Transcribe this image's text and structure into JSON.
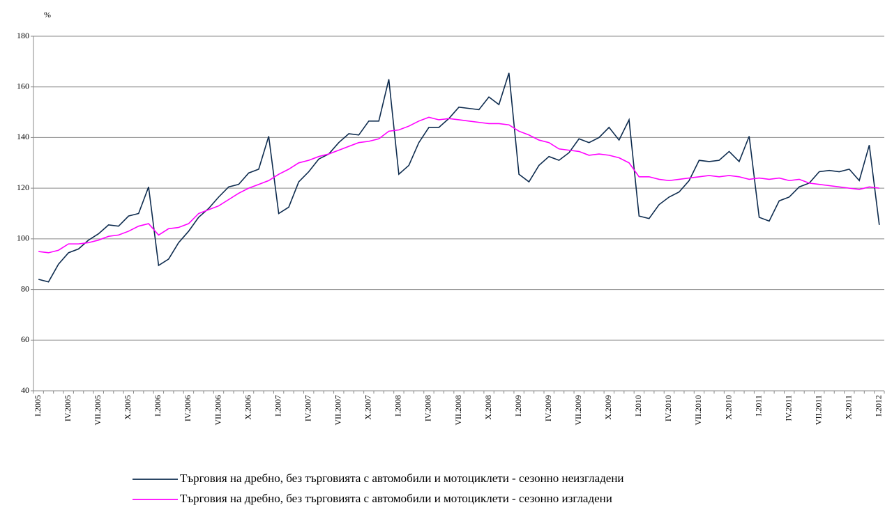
{
  "chart_data": {
    "type": "line",
    "y_label": "%",
    "categories": [
      "I.2005",
      null,
      null,
      "IV.2005",
      null,
      null,
      "VII.2005",
      null,
      null,
      "X.2005",
      null,
      null,
      "I.2006",
      null,
      null,
      "IV.2006",
      null,
      null,
      "VII.2006",
      null,
      null,
      "X.2006",
      null,
      null,
      "I.2007",
      null,
      null,
      "IV.2007",
      null,
      null,
      "VII.2007",
      null,
      null,
      "X.2007",
      null,
      null,
      "I.2008",
      null,
      null,
      "IV.2008",
      null,
      null,
      "VII.2008",
      null,
      null,
      "X.2008",
      null,
      null,
      "I.2009",
      null,
      null,
      "IV.2009",
      null,
      null,
      "VII.2009",
      null,
      null,
      "X.2009",
      null,
      null,
      "I.2010",
      null,
      null,
      "IV.2010",
      null,
      null,
      "VII.2010",
      null,
      null,
      "X.2010",
      null,
      null,
      "I.2011",
      null,
      null,
      "IV.2011",
      null,
      null,
      "VII.2011",
      null,
      null,
      "X.2011",
      null,
      null,
      "I.2012"
    ],
    "series": [
      {
        "name": "Търговия на дребно, без търговията с автомобили и мотоциклети - сезонно неизгладени",
        "color": "#0d2b4e",
        "values": [
          84,
          83,
          90,
          94.5,
          96,
          99.5,
          102,
          105.5,
          105,
          109,
          110,
          120.5,
          89.5,
          92,
          98.5,
          103,
          108.5,
          112,
          116.5,
          120.5,
          121.5,
          126,
          127.5,
          140.5,
          110,
          112.5,
          122.5,
          126.5,
          131.5,
          133.5,
          138,
          141.5,
          141,
          146.5,
          146.5,
          163,
          125.5,
          129,
          138,
          144,
          144,
          147.5,
          152,
          151.5,
          151,
          156,
          153,
          165.5,
          125.5,
          122.5,
          129,
          132.5,
          131,
          134,
          139.5,
          138,
          140,
          144,
          139,
          147,
          109,
          108,
          113.5,
          116.5,
          118.5,
          123,
          131,
          130.5,
          131,
          134.5,
          130.5,
          140.5,
          108.5,
          107,
          115,
          116.5,
          120.5,
          122,
          126.5,
          127,
          126.5,
          127.5,
          123,
          137,
          105.5
        ]
      },
      {
        "name": "Търговия на дребно, без търговията с автомобили и мотоциклети - сезонно изгладени",
        "color": "#ff00ff",
        "values": [
          95,
          94.5,
          95.5,
          98,
          98,
          98.5,
          99.5,
          101,
          101.5,
          103,
          105,
          106,
          101.5,
          104,
          104.5,
          106,
          110,
          111.5,
          113,
          115.5,
          118,
          120,
          121.5,
          123,
          125.5,
          127.5,
          130,
          131,
          132.5,
          133.5,
          135,
          136.5,
          138,
          138.5,
          139.5,
          142.5,
          143,
          144.5,
          146.5,
          148,
          147,
          147.5,
          147,
          146.5,
          146,
          145.5,
          145.5,
          145,
          142.5,
          141,
          139,
          138,
          135.5,
          135,
          134.5,
          133,
          133.5,
          133,
          132,
          130,
          124.5,
          124.5,
          123.5,
          123,
          123.5,
          124,
          124.5,
          125,
          124.5,
          125,
          124.5,
          123.5,
          124,
          123.5,
          124,
          123,
          123.5,
          122,
          121.5,
          121,
          120.5,
          120,
          119.5,
          120.5,
          120
        ]
      }
    ],
    "ylim": [
      40,
      180
    ],
    "yticks": [
      40,
      60,
      80,
      100,
      120,
      140,
      160,
      180
    ],
    "grid": true
  }
}
